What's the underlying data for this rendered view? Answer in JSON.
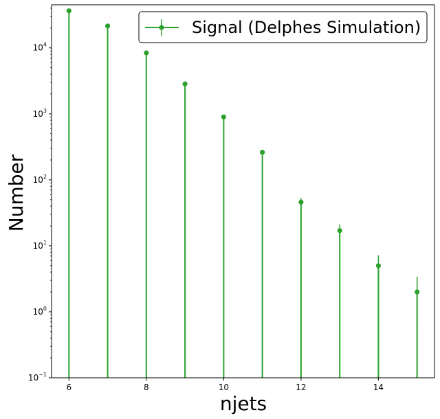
{
  "chart_data": {
    "type": "scatter",
    "xlabel": "njets",
    "ylabel": "Number",
    "xlim": [
      5.55,
      15.45
    ],
    "ylim": [
      0.1,
      45000
    ],
    "y_scale": "log",
    "grid": false,
    "legend_position": "top-right",
    "x_ticks": [
      6,
      8,
      10,
      12,
      14
    ],
    "x_tick_labels": [
      "6",
      "8",
      "10",
      "12",
      "14"
    ],
    "y_ticks": [
      0.1,
      1,
      10,
      100,
      1000,
      10000
    ],
    "y_tick_labels": [
      {
        "base": "10",
        "exp": "−1"
      },
      {
        "base": "10",
        "exp": "0"
      },
      {
        "base": "10",
        "exp": "1"
      },
      {
        "base": "10",
        "exp": "2"
      },
      {
        "base": "10",
        "exp": "3"
      },
      {
        "base": "10",
        "exp": "4"
      }
    ],
    "series": [
      {
        "name": "Signal (Delphes Simulation)",
        "color": "#2ca02c",
        "x": [
          6,
          7,
          8,
          9,
          10,
          11,
          12,
          13,
          14,
          15
        ],
        "y": [
          36500,
          21500,
          8400,
          2850,
          900,
          262,
          46,
          17,
          5,
          2
        ],
        "yerr": [
          191,
          147,
          92,
          53,
          30,
          16.2,
          6.8,
          4.1,
          2.2,
          1.4
        ]
      }
    ]
  }
}
